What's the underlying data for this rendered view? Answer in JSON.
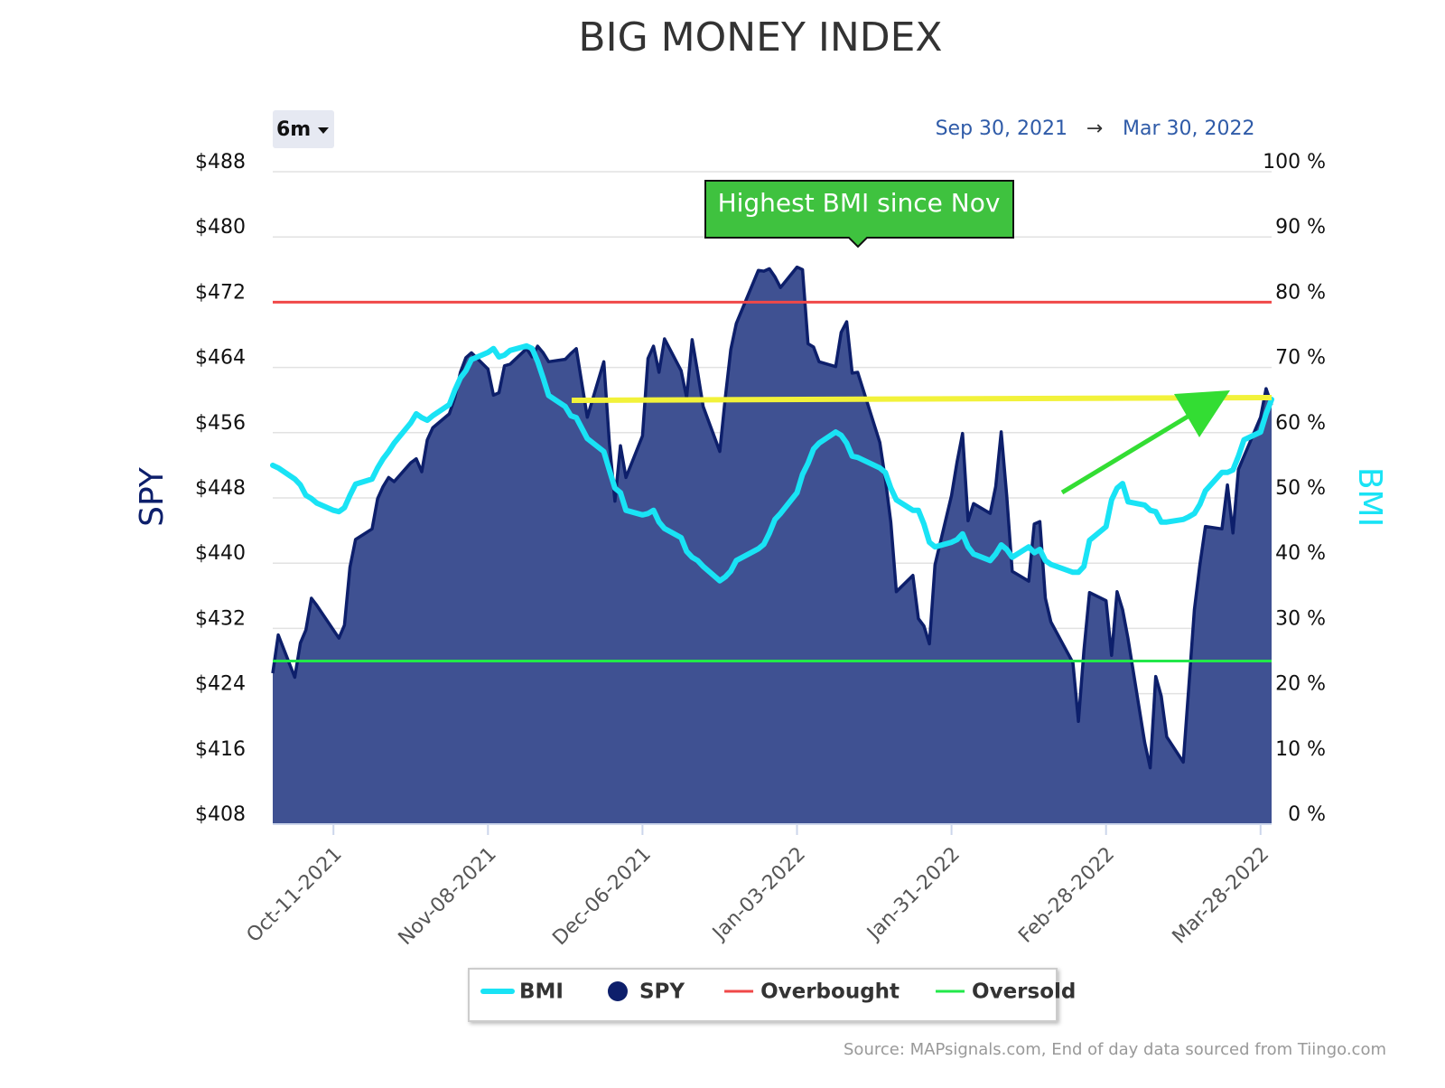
{
  "chart_data": {
    "type": "area",
    "title": "BIG MONEY INDEX",
    "range_selector": "6m",
    "date_range": {
      "start": "Sep 30, 2021",
      "separator": "→",
      "end": "Mar 30, 2022"
    },
    "annotation": "Highest BMI since Nov",
    "ylabel": "SPY",
    "y2label": "BMI",
    "source": "Source: MAPsignals.com, End of day data sourced from Tiingo.com",
    "x": [
      "2021-09-30",
      "2021-10-01",
      "2021-10-04",
      "2021-10-05",
      "2021-10-06",
      "2021-10-07",
      "2021-10-08",
      "2021-10-11",
      "2021-10-12",
      "2021-10-13",
      "2021-10-14",
      "2021-10-15",
      "2021-10-18",
      "2021-10-19",
      "2021-10-20",
      "2021-10-21",
      "2021-10-22",
      "2021-10-25",
      "2021-10-26",
      "2021-10-27",
      "2021-10-28",
      "2021-10-29",
      "2021-11-01",
      "2021-11-02",
      "2021-11-03",
      "2021-11-04",
      "2021-11-05",
      "2021-11-08",
      "2021-11-09",
      "2021-11-10",
      "2021-11-11",
      "2021-11-12",
      "2021-11-15",
      "2021-11-16",
      "2021-11-17",
      "2021-11-18",
      "2021-11-19",
      "2021-11-22",
      "2021-11-23",
      "2021-11-24",
      "2021-11-26",
      "2021-11-29",
      "2021-11-30",
      "2021-12-01",
      "2021-12-02",
      "2021-12-03",
      "2021-12-06",
      "2021-12-07",
      "2021-12-08",
      "2021-12-09",
      "2021-12-10",
      "2021-12-13",
      "2021-12-14",
      "2021-12-15",
      "2021-12-16",
      "2021-12-17",
      "2021-12-20",
      "2021-12-21",
      "2021-12-22",
      "2021-12-23",
      "2021-12-27",
      "2021-12-28",
      "2021-12-29",
      "2021-12-30",
      "2021-12-31",
      "2022-01-03",
      "2022-01-04",
      "2022-01-05",
      "2022-01-06",
      "2022-01-07",
      "2022-01-10",
      "2022-01-11",
      "2022-01-12",
      "2022-01-13",
      "2022-01-14",
      "2022-01-18",
      "2022-01-19",
      "2022-01-20",
      "2022-01-21",
      "2022-01-24",
      "2022-01-25",
      "2022-01-26",
      "2022-01-27",
      "2022-01-28",
      "2022-01-31",
      "2022-02-01",
      "2022-02-02",
      "2022-02-03",
      "2022-02-04",
      "2022-02-07",
      "2022-02-08",
      "2022-02-09",
      "2022-02-10",
      "2022-02-11",
      "2022-02-14",
      "2022-02-15",
      "2022-02-16",
      "2022-02-17",
      "2022-02-18",
      "2022-02-22",
      "2022-02-23",
      "2022-02-24",
      "2022-02-25",
      "2022-02-28",
      "2022-03-01",
      "2022-03-02",
      "2022-03-03",
      "2022-03-04",
      "2022-03-07",
      "2022-03-08",
      "2022-03-09",
      "2022-03-10",
      "2022-03-11",
      "2022-03-14",
      "2022-03-15",
      "2022-03-16",
      "2022-03-17",
      "2022-03-18",
      "2022-03-21",
      "2022-03-22",
      "2022-03-23",
      "2022-03-24",
      "2022-03-25",
      "2022-03-28",
      "2022-03-29",
      "2022-03-30"
    ],
    "xlim": [
      "2021-09-30",
      "2022-03-30"
    ],
    "xticks": [
      {
        "value": "2021-10-11",
        "label": "Oct-11-2021"
      },
      {
        "value": "2021-11-08",
        "label": "Nov-08-2021"
      },
      {
        "value": "2021-12-06",
        "label": "Dec-06-2021"
      },
      {
        "value": "2022-01-03",
        "label": "Jan-03-2022"
      },
      {
        "value": "2022-01-31",
        "label": "Jan-31-2022"
      },
      {
        "value": "2022-02-28",
        "label": "Feb-28-2022"
      },
      {
        "value": "2022-03-28",
        "label": "Mar-28-2022"
      }
    ],
    "ylim": [
      408,
      488
    ],
    "yticks": [
      {
        "value": 408,
        "label": "$408"
      },
      {
        "value": 416,
        "label": "$416"
      },
      {
        "value": 424,
        "label": "$424"
      },
      {
        "value": 432,
        "label": "$432"
      },
      {
        "value": 440,
        "label": "$440"
      },
      {
        "value": 448,
        "label": "$448"
      },
      {
        "value": 456,
        "label": "$456"
      },
      {
        "value": 464,
        "label": "$464"
      },
      {
        "value": 472,
        "label": "$472"
      },
      {
        "value": 480,
        "label": "$480"
      },
      {
        "value": 488,
        "label": "$488"
      }
    ],
    "y2lim": [
      0,
      100
    ],
    "y2ticks": [
      {
        "value": 0,
        "label": "0 %"
      },
      {
        "value": 10,
        "label": "10 %"
      },
      {
        "value": 20,
        "label": "20 %"
      },
      {
        "value": 30,
        "label": "30 %"
      },
      {
        "value": 40,
        "label": "40 %"
      },
      {
        "value": 50,
        "label": "50 %"
      },
      {
        "value": 60,
        "label": "60 %"
      },
      {
        "value": 70,
        "label": "70 %"
      },
      {
        "value": 80,
        "label": "80 %"
      },
      {
        "value": 90,
        "label": "90 %"
      },
      {
        "value": 100,
        "label": "100 %"
      }
    ],
    "grid": true,
    "legend": "bottom",
    "series": [
      {
        "name": "BMI",
        "type": "line",
        "axis": "y2",
        "color": "#19e3f5",
        "values": [
          55,
          54.6,
          52.9,
          52,
          50.4,
          49.9,
          49.2,
          48.1,
          47.9,
          48.5,
          50.4,
          52.1,
          52.9,
          54.6,
          56,
          57.1,
          58.4,
          61.5,
          62.9,
          62.3,
          61.9,
          62.6,
          64.3,
          66.5,
          68.4,
          69.5,
          71.2,
          72.3,
          72.9,
          71.6,
          71.9,
          72.6,
          73.3,
          72.9,
          70.9,
          68.4,
          65.7,
          64,
          62.6,
          62.3,
          59.1,
          57.1,
          54.3,
          51.5,
          50.8,
          48.1,
          47.4,
          47.6,
          48.1,
          46.3,
          45.3,
          43.9,
          41.8,
          40.9,
          40.4,
          39.5,
          37.3,
          37.9,
          38.8,
          40.4,
          42.2,
          42.9,
          44.6,
          46.7,
          47.6,
          50.8,
          53.6,
          55.3,
          57.5,
          58.4,
          60.1,
          59.6,
          58.4,
          56.4,
          56.2,
          54.6,
          53.9,
          51.5,
          49.7,
          48.1,
          48.1,
          46,
          43.2,
          42.5,
          43.2,
          43.6,
          44.5,
          42.5,
          41.4,
          40.4,
          41.4,
          42.8,
          42.1,
          40.9,
          42.5,
          41.6,
          42.1,
          40.4,
          39.8,
          38.6,
          38.6,
          39.5,
          43.5,
          45.6,
          49.7,
          51.5,
          52.2,
          49.4,
          48.9,
          48.1,
          47.9,
          46.3,
          46.3,
          46.7,
          47.1,
          47.6,
          49,
          51.1,
          53.9,
          53.9,
          54.3,
          56.4,
          58.9,
          60.1,
          62.9,
          65.1
        ]
      },
      {
        "name": "SPY",
        "type": "area",
        "color": "#0d1f6b",
        "fill": "#3f5192",
        "values": [
          426.5,
          431.2,
          426,
          430.2,
          431.8,
          435.7,
          434.8,
          431.8,
          430.8,
          432.4,
          439.5,
          442.9,
          444.2,
          447.9,
          449.4,
          450.5,
          450,
          452.3,
          452.8,
          451.2,
          455.1,
          456.6,
          458.3,
          460.3,
          463.4,
          465.2,
          465.8,
          463.8,
          460.6,
          460.9,
          464.2,
          464.4,
          466.3,
          465.3,
          466.6,
          465.8,
          464.7,
          465,
          465.7,
          466.3,
          457.9,
          464.7,
          454.8,
          447.6,
          454.4,
          450.5,
          455.6,
          465.1,
          466.6,
          463.4,
          467.5,
          463.6,
          460.3,
          467.4,
          463.4,
          459.2,
          453.7,
          460.3,
          466.2,
          469.4,
          475.9,
          475.8,
          476.1,
          475.1,
          473.8,
          476.3,
          476,
          466.9,
          466.5,
          464.7,
          464.1,
          468.3,
          469.6,
          463.3,
          463.4,
          454.8,
          450.3,
          445,
          436.5,
          438.5,
          433.2,
          432.3,
          430.1,
          439.8,
          448.3,
          452.4,
          455.9,
          445.2,
          447.3,
          446.1,
          449.4,
          456.1,
          448.3,
          439,
          437.8,
          444.8,
          445.1,
          435.7,
          432.8,
          427.8,
          420.6,
          429.3,
          436.4,
          435.4,
          428.7,
          436.5,
          434.3,
          430.7,
          418,
          414.9,
          426.1,
          423.7,
          418.7,
          415.6,
          424.8,
          434.3,
          439.8,
          444.5,
          444.2,
          449.6,
          443.7,
          451.5,
          453.1,
          457.9,
          461.4,
          459.4
        ]
      }
    ],
    "reference_lines": [
      {
        "name": "Overbought",
        "value": 80,
        "axis": "y2",
        "color": "#f04848"
      },
      {
        "name": "Oversold",
        "value": 25,
        "axis": "y2",
        "color": "#22e84a"
      }
    ]
  }
}
